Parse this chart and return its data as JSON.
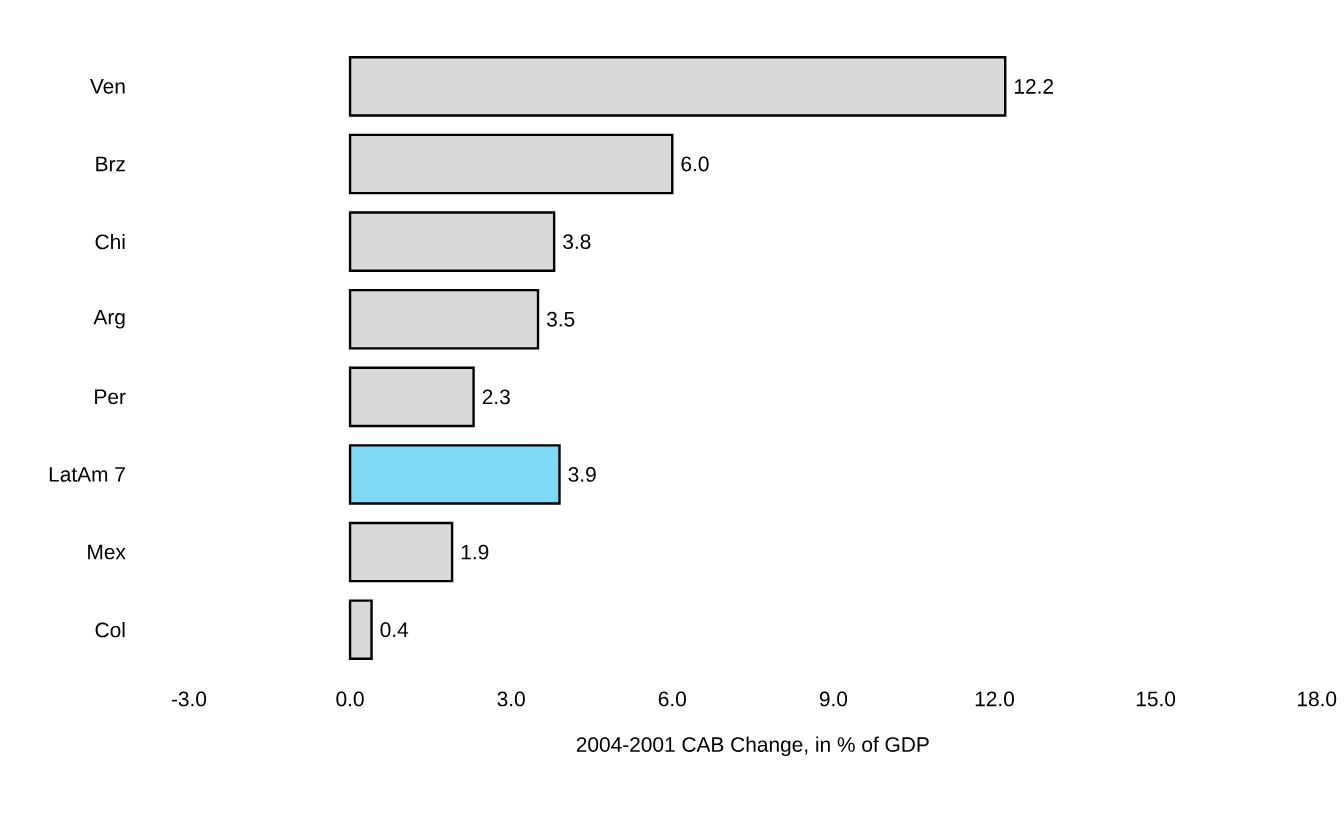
{
  "chart_data": {
    "type": "bar",
    "orientation": "horizontal",
    "xlabel": "2004-2001 CAB Change, in % of GDP",
    "categories": [
      "Ven",
      "Brz",
      "Chi",
      "Arg",
      "Per",
      "LatAm 7",
      "Mex",
      "Col"
    ],
    "values": [
      12.2,
      6.0,
      3.8,
      3.5,
      2.3,
      3.9,
      1.9,
      0.4
    ],
    "value_labels": [
      "12.2",
      "6.0",
      "3.8",
      "3.5",
      "2.3",
      "3.9",
      "1.9",
      "0.4"
    ],
    "colors": [
      "#d9d9d9",
      "#d9d9d9",
      "#d9d9d9",
      "#d9d9d9",
      "#d9d9d9",
      "#7fd8f5",
      "#d9d9d9",
      "#d9d9d9"
    ],
    "xlim": [
      -3,
      18
    ],
    "xticks": [
      {
        "value": -3,
        "label": "-3.0"
      },
      {
        "value": 0,
        "label": "0.0"
      },
      {
        "value": 3,
        "label": "3.0"
      },
      {
        "value": 6,
        "label": "6.0"
      },
      {
        "value": 9,
        "label": "9.0"
      },
      {
        "value": 12,
        "label": "12.0"
      },
      {
        "value": 15,
        "label": "15.0"
      },
      {
        "value": 18,
        "label": "18.0"
      }
    ],
    "grid": false
  }
}
